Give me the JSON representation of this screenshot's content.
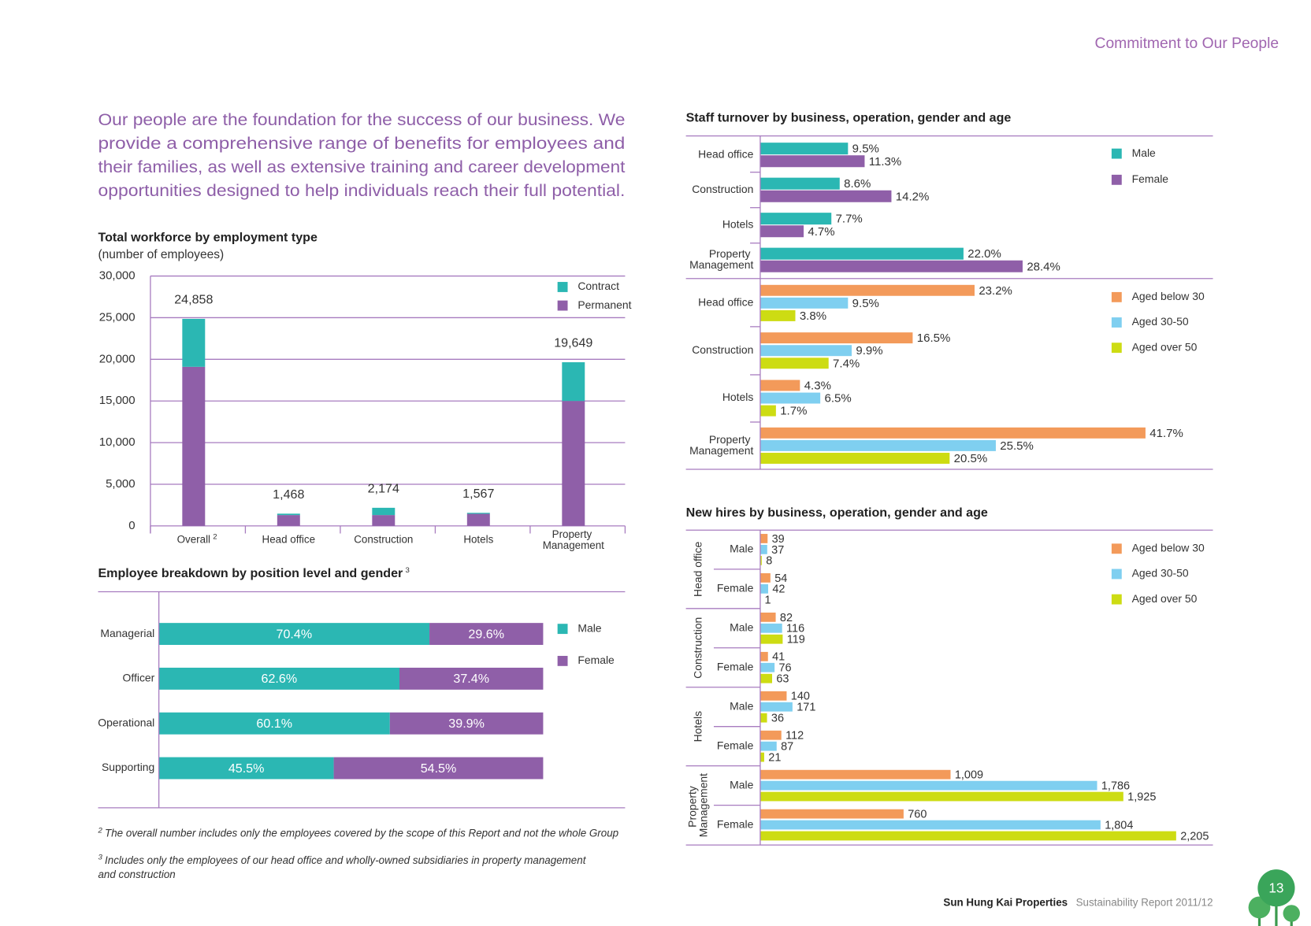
{
  "header": {
    "section": "Commitment to Our People"
  },
  "intro": [
    "Our people are the foundation for the success of our business. We",
    "provide a comprehensive range of benefits for employees and",
    "their families, as well as extensive training and career development",
    "opportunities designed to help individuals reach their full potential."
  ],
  "chart_data": [
    {
      "type": "bar",
      "orientation": "vertical",
      "stacked": true,
      "title": "Total workforce by employment type",
      "subtitle": "(number of employees)",
      "categories": [
        "Overall",
        "Head office",
        "Construction",
        "Hotels",
        "Property Management"
      ],
      "category_note": "2",
      "series": [
        {
          "name": "Permanent",
          "color": "#8f5fa8",
          "values": [
            19100,
            1300,
            1300,
            1450,
            15000
          ]
        },
        {
          "name": "Contract",
          "color": "#2bb7b3",
          "values": [
            5758,
            168,
            874,
            117,
            4649
          ]
        }
      ],
      "totals": [
        24858,
        1468,
        2174,
        1567,
        19649
      ],
      "total_labels": [
        "24,858",
        "1,468",
        "2,174",
        "1,567",
        "19,649"
      ],
      "ylim": [
        0,
        30000
      ],
      "yticks": [
        0,
        {
          "value": 5000,
          "label": "5,000"
        },
        {
          "value": 10000,
          "label": "10,000"
        },
        {
          "value": 15000,
          "label": "15,000"
        },
        {
          "value": 20000,
          "label": "20,000"
        },
        {
          "value": 25000,
          "label": "25,000"
        },
        {
          "value": 30000,
          "label": "30,000"
        }
      ],
      "grid": true,
      "legend": "top-right"
    },
    {
      "type": "bar",
      "orientation": "horizontal",
      "stacked": true,
      "title": "Employee breakdown by position level and gender",
      "title_note": "3",
      "categories": [
        "Managerial",
        "Officer",
        "Operational",
        "Supporting"
      ],
      "series": [
        {
          "name": "Male",
          "color": "#2bb7b3",
          "values": [
            70.4,
            62.6,
            60.1,
            45.5
          ],
          "value_labels": [
            "70.4%",
            "62.6%",
            "60.1%",
            "45.5%"
          ]
        },
        {
          "name": "Female",
          "color": "#8f5fa8",
          "values": [
            29.6,
            37.4,
            39.9,
            54.5
          ],
          "value_labels": [
            "29.6%",
            "37.4%",
            "39.9%",
            "54.5%"
          ]
        }
      ],
      "xlim": [
        0,
        100
      ],
      "legend": "right"
    },
    {
      "type": "bar",
      "orientation": "horizontal",
      "stacked": false,
      "title": "Staff turnover by business, operation, gender and age",
      "categories": [
        "Head office",
        "Construction",
        "Hotels",
        "Property Management"
      ],
      "series": [
        {
          "name": "Male",
          "color": "#2bb7b3",
          "values": [
            9.5,
            8.6,
            7.7,
            22.0
          ],
          "value_labels": [
            "9.5%",
            "8.6%",
            "7.7%",
            "22.0%"
          ]
        },
        {
          "name": "Female",
          "color": "#8f5fa8",
          "values": [
            11.3,
            14.2,
            4.7,
            28.4
          ],
          "value_labels": [
            "11.3%",
            "14.2%",
            "4.7%",
            "28.4%"
          ]
        }
      ],
      "xlim": [
        0,
        49
      ],
      "legend": "right"
    },
    {
      "type": "bar",
      "orientation": "horizontal",
      "stacked": false,
      "categories": [
        "Head office",
        "Construction",
        "Hotels",
        "Property Management"
      ],
      "series": [
        {
          "name": "Aged below 30",
          "color": "#f39a5a",
          "values": [
            23.2,
            16.5,
            4.3,
            41.7
          ],
          "value_labels": [
            "23.2%",
            "16.5%",
            "4.3%",
            "41.7%"
          ]
        },
        {
          "name": "Aged 30-50",
          "color": "#7fcff0",
          "values": [
            9.5,
            9.9,
            6.5,
            25.5
          ],
          "value_labels": [
            "9.5%",
            "9.9%",
            "6.5%",
            "25.5%"
          ]
        },
        {
          "name": "Aged over 50",
          "color": "#cddc13",
          "values": [
            3.8,
            7.4,
            1.7,
            20.5
          ],
          "value_labels": [
            "3.8%",
            "7.4%",
            "1.7%",
            "20.5%"
          ]
        }
      ],
      "xlim": [
        0,
        49
      ],
      "legend": "right"
    },
    {
      "type": "bar",
      "orientation": "horizontal",
      "stacked": false,
      "title": "New hires by business, operation, gender and age",
      "groups": [
        "Head office",
        "Construction",
        "Hotels",
        "Property Management"
      ],
      "categories": [
        "Male",
        "Female",
        "Male",
        "Female",
        "Male",
        "Female",
        "Male",
        "Female"
      ],
      "series": [
        {
          "name": "Aged below 30",
          "color": "#f39a5a",
          "values": [
            39,
            54,
            82,
            41,
            140,
            112,
            1009,
            760
          ],
          "value_labels": [
            "39",
            "54",
            "82",
            "41",
            "140",
            "112",
            "1,009",
            "760"
          ]
        },
        {
          "name": "Aged 30-50",
          "color": "#7fcff0",
          "values": [
            37,
            42,
            116,
            76,
            171,
            87,
            1786,
            1804
          ],
          "value_labels": [
            "37",
            "42",
            "116",
            "76",
            "171",
            "87",
            "1,786",
            "1,804"
          ]
        },
        {
          "name": "Aged over 50",
          "color": "#cddc13",
          "values": [
            8,
            1,
            119,
            63,
            36,
            21,
            1925,
            2205
          ],
          "value_labels": [
            "8",
            "1",
            "119",
            "63",
            "36",
            "21",
            "1,925",
            "2,205"
          ]
        }
      ],
      "xlim": [
        0,
        2400
      ],
      "legend": "right"
    }
  ],
  "footnotes": [
    {
      "mark": "2",
      "lines": [
        "The overall number includes only the employees covered by the scope of this Report and not the whole Group"
      ]
    },
    {
      "mark": "3",
      "lines": [
        "Includes only the employees of our head office and wholly-owned subsidiaries in property management",
        "and construction"
      ]
    }
  ],
  "footer": {
    "company": "Sun Hung Kai Properties",
    "report": "Sustainability Report 2011/12",
    "page": "13"
  }
}
